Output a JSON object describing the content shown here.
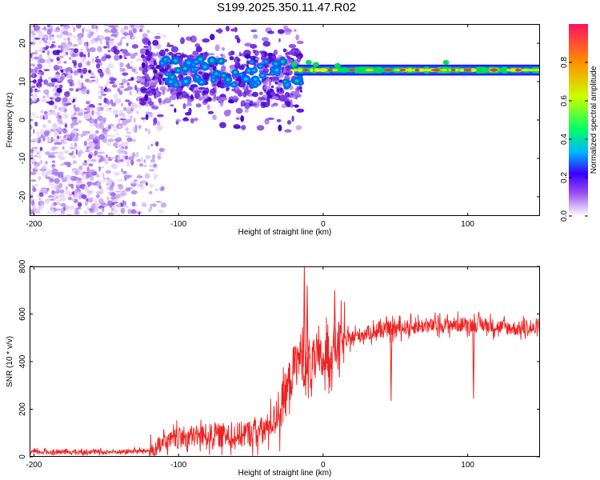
{
  "page": {
    "title": "S199.2025.350.11.47.R02"
  },
  "colors": {
    "scatter": [
      "#e6d2fb",
      "#c9a6f5",
      "#a673ec",
      "#7a33e0",
      "#5a0cd8",
      "#3c00c8"
    ],
    "band_outer": "#0066ff",
    "band_mid": "#00dd55",
    "band_inner": "#ffe600",
    "band_core": "#ff3030",
    "snr_line": "#ee2222",
    "colorbar": [
      "#ffffff",
      "#dcc6fa",
      "#9a4df0",
      "#3a00ff",
      "#00b4ff",
      "#00ff66",
      "#ccff00",
      "#ff9000",
      "#ff1060"
    ]
  },
  "chart_data": [
    {
      "type": "heatmap",
      "title": "S199.2025.350.11.47.R02",
      "xlabel": "Height of straight line (km)",
      "ylabel": "Frequency (Hz)",
      "xlim": [
        -203,
        150
      ],
      "ylim": [
        -25,
        25
      ],
      "x_ticks": [
        "-200",
        "-100",
        "0",
        "100"
      ],
      "y_ticks": [
        "-20",
        "-10",
        "0",
        "10",
        "20"
      ],
      "band": {
        "x_start": -20,
        "x_end": 150,
        "freq_low": 12,
        "freq_high": 14
      },
      "noise_region": {
        "x_start": -203,
        "x_end": -120
      },
      "colorbar": {
        "label": "Normalized spectral amplitude",
        "range": [
          0.0,
          1.0
        ],
        "ticks": [
          "0.0",
          "0.2",
          "0.4",
          "0.6",
          "0.8"
        ]
      }
    },
    {
      "type": "line",
      "xlabel": "Height of straight line (km)",
      "ylabel": "SNR (10 * v/v)",
      "xlim": [
        -203,
        150
      ],
      "ylim": [
        0,
        800
      ],
      "x_ticks": [
        "-200",
        "-100",
        "0",
        "100"
      ],
      "y_ticks": [
        "0",
        "200",
        "400",
        "600",
        "800"
      ],
      "series": [
        {
          "x": [
            -203,
            -150,
            -120,
            -100,
            -80,
            -60,
            -40,
            -30,
            -25,
            -20,
            -15,
            -12,
            -10,
            -5,
            0,
            10,
            20,
            30,
            50,
            70,
            90,
            110,
            130,
            150
          ],
          "y": [
            20,
            20,
            25,
            80,
            90,
            90,
            110,
            190,
            280,
            380,
            430,
            350,
            380,
            400,
            410,
            470,
            500,
            520,
            540,
            550,
            555,
            555,
            540,
            535
          ]
        }
      ],
      "spikes": [
        {
          "x": -13,
          "y": 800
        },
        {
          "x": -11,
          "y": 720
        },
        {
          "x": 8,
          "y": 700
        },
        {
          "x": 47,
          "y": 235
        },
        {
          "x": 104,
          "y": 245
        }
      ]
    }
  ]
}
